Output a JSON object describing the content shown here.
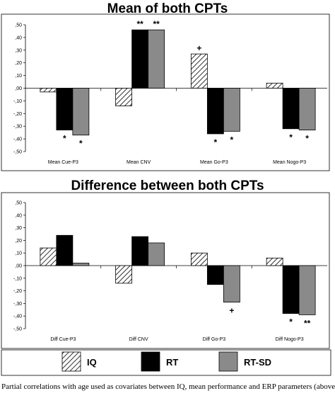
{
  "colors": {
    "RT": "#000000",
    "RT-SD": "#8a8a8a",
    "IQ": "hatch"
  },
  "legend": [
    {
      "name": "IQ",
      "style": "hatch"
    },
    {
      "name": "RT",
      "style": "black"
    },
    {
      "name": "RT-SD",
      "style": "gray"
    }
  ],
  "caption": "Partial correlations with age used as covariates between IQ, mean performance and ERP parameters (above) and differences in performance or ERP from standard and flanker CPT",
  "chart_data": [
    {
      "type": "bar",
      "title": "Mean of both CPTs",
      "categories": [
        "Mean Cue-P3",
        "Mean CNV",
        "Mean Go-P3",
        "Mean Nogo-P3"
      ],
      "ylim": [
        -0.5,
        0.5
      ],
      "yticks": [
        ",50",
        ",40",
        ",30",
        ",20",
        ",10",
        ",00",
        "-,10",
        "-,20",
        "-,30",
        "-,40",
        "-,50"
      ],
      "series": [
        {
          "name": "IQ",
          "values": [
            -0.03,
            -0.14,
            0.27,
            0.04
          ]
        },
        {
          "name": "RT",
          "values": [
            -0.33,
            0.46,
            -0.36,
            -0.32
          ]
        },
        {
          "name": "RT-SD",
          "values": [
            -0.37,
            0.46,
            -0.34,
            -0.33
          ]
        }
      ],
      "annotations": [
        {
          "category": 0,
          "series": 1,
          "text": "*"
        },
        {
          "category": 0,
          "series": 2,
          "text": "*"
        },
        {
          "category": 1,
          "series": 1,
          "text": "**"
        },
        {
          "category": 1,
          "series": 2,
          "text": "**"
        },
        {
          "category": 2,
          "series": 0,
          "text": "+"
        },
        {
          "category": 2,
          "series": 1,
          "text": "*"
        },
        {
          "category": 2,
          "series": 2,
          "text": "*"
        },
        {
          "category": 3,
          "series": 1,
          "text": "*"
        },
        {
          "category": 3,
          "series": 2,
          "text": "*"
        }
      ]
    },
    {
      "type": "bar",
      "title": "Difference between both CPTs",
      "categories": [
        "Diff Cue-P3",
        "Diff CNV",
        "Diff Go-P3",
        "Diff Nogo-P3"
      ],
      "ylim": [
        -0.5,
        0.5
      ],
      "yticks": [
        ",50",
        ",40",
        ",30",
        ",20",
        ",10",
        ",00",
        "-,10",
        "-,20",
        "-,30",
        "-,40",
        "-,50"
      ],
      "series": [
        {
          "name": "IQ",
          "values": [
            0.14,
            -0.14,
            0.1,
            0.06
          ]
        },
        {
          "name": "RT",
          "values": [
            0.24,
            0.23,
            -0.15,
            -0.38
          ]
        },
        {
          "name": "RT-SD",
          "values": [
            0.02,
            0.18,
            -0.29,
            -0.39
          ]
        }
      ],
      "annotations": [
        {
          "category": 2,
          "series": 2,
          "text": "+"
        },
        {
          "category": 3,
          "series": 1,
          "text": "*"
        },
        {
          "category": 3,
          "series": 2,
          "text": "**"
        }
      ]
    }
  ]
}
